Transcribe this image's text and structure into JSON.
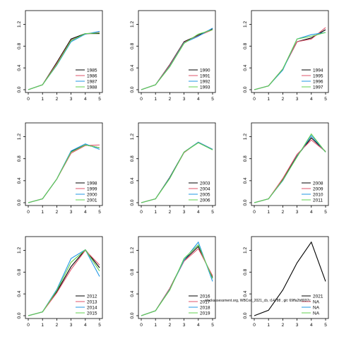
{
  "overlay_text": "stockassessment.org, WBCod_2021_cb, r14788 , git: 69ffa2b8037c",
  "chart_data": [
    {
      "type": "line",
      "xlim": [
        0,
        5
      ],
      "ylim": [
        0,
        1.4
      ],
      "x_ticks": [
        "0",
        "1",
        "2",
        "3",
        "4",
        "5"
      ],
      "y_ticks": [
        "0.0",
        "0.4",
        "0.8",
        "1.2"
      ],
      "legend": "bottom-right",
      "series": [
        {
          "name": "1985",
          "color": "#000000",
          "values": [
            0,
            0.09,
            0.5,
            0.93,
            1.03,
            1.03
          ]
        },
        {
          "name": "1986",
          "color": "#DF536B",
          "values": [
            0,
            0.09,
            0.48,
            0.91,
            1.02,
            1.05
          ]
        },
        {
          "name": "1987",
          "color": "#2297E6",
          "values": [
            0,
            0.09,
            0.45,
            0.88,
            1.02,
            1.07
          ]
        },
        {
          "name": "1988",
          "color": "#61D04F",
          "values": [
            0,
            0.09,
            0.46,
            0.9,
            1.03,
            1.04
          ]
        }
      ]
    },
    {
      "type": "line",
      "xlim": [
        0,
        5
      ],
      "ylim": [
        0,
        1.4
      ],
      "x_ticks": [
        "0",
        "1",
        "2",
        "3",
        "4",
        "5"
      ],
      "y_ticks": [
        "0.0",
        "0.4",
        "0.8",
        "1.2"
      ],
      "legend": "bottom-right",
      "series": [
        {
          "name": "1990",
          "color": "#000000",
          "values": [
            0,
            0.09,
            0.46,
            0.88,
            1.0,
            1.12
          ]
        },
        {
          "name": "1991",
          "color": "#DF536B",
          "values": [
            0,
            0.09,
            0.45,
            0.87,
            0.99,
            1.1
          ]
        },
        {
          "name": "1992",
          "color": "#2297E6",
          "values": [
            0,
            0.09,
            0.43,
            0.86,
            0.98,
            1.13
          ]
        },
        {
          "name": "1993",
          "color": "#61D04F",
          "values": [
            0,
            0.09,
            0.42,
            0.85,
            1.02,
            1.1
          ]
        }
      ]
    },
    {
      "type": "line",
      "xlim": [
        0,
        5
      ],
      "ylim": [
        0,
        1.4
      ],
      "x_ticks": [
        "0",
        "1",
        "2",
        "3",
        "4",
        "5"
      ],
      "y_ticks": [
        "0.0",
        "0.4",
        "0.8",
        "1.2"
      ],
      "legend": "bottom-right",
      "series": [
        {
          "name": "1994",
          "color": "#000000",
          "values": [
            0,
            0.07,
            0.38,
            0.88,
            0.95,
            1.1
          ]
        },
        {
          "name": "1995",
          "color": "#DF536B",
          "values": [
            0,
            0.07,
            0.38,
            0.88,
            0.93,
            1.14
          ]
        },
        {
          "name": "1996",
          "color": "#2297E6",
          "values": [
            0,
            0.07,
            0.36,
            0.93,
            1.01,
            1.05
          ]
        },
        {
          "name": "1997",
          "color": "#61D04F",
          "values": [
            0,
            0.07,
            0.38,
            0.93,
            0.98,
            1.05
          ]
        }
      ]
    },
    {
      "type": "line",
      "xlim": [
        0,
        5
      ],
      "ylim": [
        0,
        1.4
      ],
      "x_ticks": [
        "0",
        "1",
        "2",
        "3",
        "4",
        "5"
      ],
      "y_ticks": [
        "0.0",
        "0.4",
        "0.8",
        "1.2"
      ],
      "legend": "bottom-right",
      "series": [
        {
          "name": "1998",
          "color": "#000000",
          "values": [
            0,
            0.07,
            0.43,
            0.93,
            1.05,
            1.0
          ]
        },
        {
          "name": "1999",
          "color": "#DF536B",
          "values": [
            0,
            0.07,
            0.43,
            0.9,
            1.04,
            1.05
          ]
        },
        {
          "name": "2000",
          "color": "#2297E6",
          "values": [
            0,
            0.07,
            0.43,
            0.94,
            1.07,
            0.97
          ]
        },
        {
          "name": "2001",
          "color": "#61D04F",
          "values": [
            0,
            0.07,
            0.43,
            0.92,
            1.05,
            1.0
          ]
        }
      ]
    },
    {
      "type": "line",
      "xlim": [
        0,
        5
      ],
      "ylim": [
        0,
        1.4
      ],
      "x_ticks": [
        "0",
        "1",
        "2",
        "3",
        "4",
        "5"
      ],
      "y_ticks": [
        "0.0",
        "0.4",
        "0.8",
        "1.2"
      ],
      "legend": "bottom-right",
      "series": [
        {
          "name": "2003",
          "color": "#000000",
          "values": [
            0,
            0.07,
            0.46,
            0.92,
            1.1,
            0.97
          ]
        },
        {
          "name": "2004",
          "color": "#DF536B",
          "values": [
            0,
            0.07,
            0.45,
            0.91,
            1.1,
            0.97
          ]
        },
        {
          "name": "2005",
          "color": "#2297E6",
          "values": [
            0,
            0.07,
            0.45,
            0.92,
            1.1,
            0.97
          ]
        },
        {
          "name": "2006",
          "color": "#61D04F",
          "values": [
            0,
            0.07,
            0.44,
            0.92,
            1.09,
            0.96
          ]
        }
      ]
    },
    {
      "type": "line",
      "xlim": [
        0,
        5
      ],
      "ylim": [
        0,
        1.4
      ],
      "x_ticks": [
        "0",
        "1",
        "2",
        "3",
        "4",
        "5"
      ],
      "y_ticks": [
        "0.0",
        "0.4",
        "0.8",
        "1.2"
      ],
      "legend": "bottom-right",
      "series": [
        {
          "name": "2008",
          "color": "#000000",
          "values": [
            0,
            0.07,
            0.42,
            0.85,
            1.18,
            0.93
          ]
        },
        {
          "name": "2009",
          "color": "#DF536B",
          "values": [
            0,
            0.07,
            0.44,
            0.88,
            1.14,
            0.93
          ]
        },
        {
          "name": "2010",
          "color": "#2297E6",
          "values": [
            0,
            0.07,
            0.4,
            0.84,
            1.22,
            0.92
          ]
        },
        {
          "name": "2011",
          "color": "#61D04F",
          "values": [
            0,
            0.07,
            0.41,
            0.83,
            1.25,
            0.92
          ]
        }
      ]
    },
    {
      "type": "line",
      "xlim": [
        0,
        5
      ],
      "ylim": [
        0,
        1.4
      ],
      "x_ticks": [
        "0",
        "1",
        "2",
        "3",
        "4",
        "5"
      ],
      "y_ticks": [
        "0.0",
        "0.4",
        "0.8",
        "1.2"
      ],
      "legend": "bottom-right",
      "series": [
        {
          "name": "2012",
          "color": "#000000",
          "values": [
            0,
            0.07,
            0.44,
            0.9,
            1.21,
            0.88
          ]
        },
        {
          "name": "2013",
          "color": "#DF536B",
          "values": [
            0,
            0.07,
            0.42,
            0.85,
            1.2,
            0.93
          ]
        },
        {
          "name": "2014",
          "color": "#2297E6",
          "values": [
            0,
            0.07,
            0.48,
            1.05,
            1.21,
            0.72
          ]
        },
        {
          "name": "2015",
          "color": "#61D04F",
          "values": [
            0,
            0.07,
            0.46,
            0.98,
            1.21,
            0.82
          ]
        }
      ]
    },
    {
      "type": "line",
      "xlim": [
        0,
        5
      ],
      "ylim": [
        0,
        1.4
      ],
      "x_ticks": [
        "0",
        "1",
        "2",
        "3",
        "4",
        "5"
      ],
      "y_ticks": [
        "0.0",
        "0.4",
        "0.8",
        "1.2"
      ],
      "legend": "bottom-right",
      "series": [
        {
          "name": "2016",
          "color": "#000000",
          "values": [
            0,
            0.09,
            0.5,
            1.02,
            1.27,
            0.7
          ]
        },
        {
          "name": "2017",
          "color": "#DF536B",
          "values": [
            0,
            0.09,
            0.5,
            1.0,
            1.23,
            0.73
          ]
        },
        {
          "name": "2018",
          "color": "#2297E6",
          "values": [
            0,
            0.09,
            0.48,
            1.02,
            1.35,
            0.63
          ]
        },
        {
          "name": "2019",
          "color": "#61D04F",
          "values": [
            0,
            0.09,
            0.47,
            1.05,
            1.3,
            0.68
          ]
        }
      ]
    },
    {
      "type": "line",
      "xlim": [
        0,
        5
      ],
      "ylim": [
        0,
        1.4
      ],
      "x_ticks": [
        "0",
        "1",
        "2",
        "3",
        "4",
        "5"
      ],
      "y_ticks": [
        "0.0",
        "0.4",
        "0.8",
        "1.2"
      ],
      "legend": "bottom-right",
      "series": [
        {
          "name": "2021",
          "color": "#000000",
          "values": [
            0,
            0.1,
            0.47,
            0.97,
            1.35,
            0.63
          ]
        },
        {
          "name": "NA",
          "color": "#DF536B",
          "values": []
        },
        {
          "name": "NA",
          "color": "#2297E6",
          "values": []
        },
        {
          "name": "NA",
          "color": "#61D04F",
          "values": []
        }
      ]
    }
  ]
}
